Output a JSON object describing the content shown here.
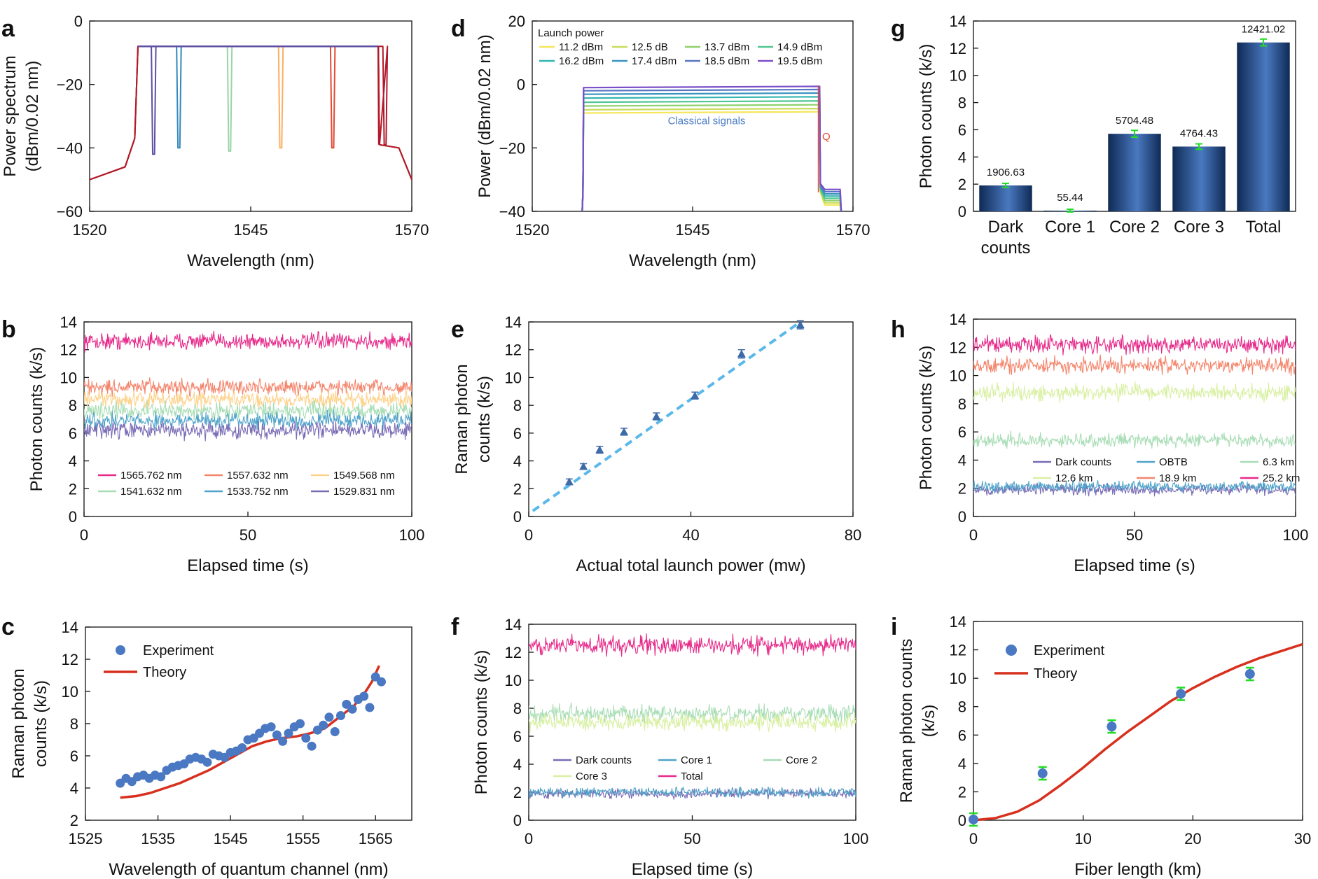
{
  "chart_data": [
    {
      "panel": "a",
      "type": "line",
      "xlabel": "Wavelength (nm)",
      "ylabel": [
        "Power spectrum",
        "(dBm/0.02 nm)"
      ],
      "xlim": [
        1520,
        1570
      ],
      "ylim": [
        -60,
        0
      ],
      "xticks": [
        1520,
        1545,
        1570
      ],
      "yticks": [
        0,
        -20,
        -40,
        -60
      ],
      "ytick_labels": [
        "0",
        "−20",
        "−40",
        "−60"
      ],
      "spectrum": {
        "floor_left": [
          [
            1520,
            -50
          ],
          [
            1525.5,
            -46
          ],
          [
            1527,
            -37
          ],
          [
            1527.5,
            -8
          ]
        ],
        "top": -8,
        "right_edge": 1564.8,
        "floor_right": [
          [
            1565,
            -39
          ],
          [
            1568,
            -40
          ],
          [
            1570,
            -50
          ]
        ]
      },
      "notches": [
        {
          "wavelength": 1529.831,
          "depth": -42,
          "color": "#5e4fa2"
        },
        {
          "wavelength": 1533.752,
          "depth": -40,
          "color": "#3288bd"
        },
        {
          "wavelength": 1541.632,
          "depth": -41,
          "color": "#99d5a4"
        },
        {
          "wavelength": 1549.568,
          "depth": -40,
          "color": "#fdae61"
        },
        {
          "wavelength": 1557.632,
          "depth": -40,
          "color": "#e34a33"
        },
        {
          "wavelength": 1565.762,
          "depth": -39,
          "color": "#b2182b"
        }
      ]
    },
    {
      "panel": "d",
      "type": "line",
      "xlabel": "Wavelength (nm)",
      "ylabel": "Power (dBm/0.02 nm)",
      "xlim": [
        1520,
        1570
      ],
      "ylim": [
        -40,
        20
      ],
      "xticks": [
        1520,
        1545,
        1570
      ],
      "yticks": [
        20,
        0,
        -20,
        -40
      ],
      "ytick_labels": [
        "20",
        "0",
        "−20",
        "−40"
      ],
      "legend_title": "Launch power",
      "annotation": "Classical signals",
      "q_label": "Q",
      "series": [
        {
          "name": "11.2 dBm",
          "color": "#f6e65a",
          "level": -9.0
        },
        {
          "name": "12.5 dB",
          "color": "#c7dd5c",
          "level": -8.0
        },
        {
          "name": "13.7 dBm",
          "color": "#8fd16e",
          "level": -6.8
        },
        {
          "name": "14.9 dBm",
          "color": "#4fc792",
          "level": -5.6
        },
        {
          "name": "16.2 dBm",
          "color": "#32b5b0",
          "level": -4.3
        },
        {
          "name": "17.4 dBm",
          "color": "#3a93c0",
          "level": -3.1
        },
        {
          "name": "18.5 dBm",
          "color": "#5876c2",
          "level": -2.0
        },
        {
          "name": "19.5 dBm",
          "color": "#7b4fc8",
          "level": -1.0
        }
      ],
      "band": [
        1528,
        1564.8
      ]
    },
    {
      "panel": "g",
      "type": "bar",
      "ylabel": "Photon counts (k/s)",
      "ylim": [
        0,
        14
      ],
      "yticks": [
        0,
        2,
        4,
        6,
        8,
        10,
        12,
        14
      ],
      "categories": [
        [
          "Dark",
          "counts"
        ],
        [
          "Core 1"
        ],
        [
          "Core 2"
        ],
        [
          "Core 3"
        ],
        [
          "Total"
        ]
      ],
      "values": [
        1.90663,
        0.05544,
        5.70448,
        4.76443,
        12.42102
      ],
      "labels": [
        "1906.63",
        "55.44",
        "5704.48",
        "4764.43",
        "12421.02"
      ],
      "errors": [
        0.15,
        0.1,
        0.25,
        0.2,
        0.25
      ]
    },
    {
      "panel": "b",
      "type": "line",
      "xlabel": "Elapsed time (s)",
      "ylabel": "Photon counts (k/s)",
      "xlim": [
        0,
        100
      ],
      "ylim": [
        0,
        14
      ],
      "xticks": [
        0,
        50,
        100
      ],
      "yticks": [
        0,
        2,
        4,
        6,
        8,
        10,
        12,
        14
      ],
      "series": [
        {
          "name": "1565.762 nm",
          "mean": 12.6,
          "noise": 0.35,
          "color": "#e7298a"
        },
        {
          "name": "1557.632 nm",
          "mean": 9.3,
          "noise": 0.35,
          "color": "#f4856c"
        },
        {
          "name": "1549.568 nm",
          "mean": 8.4,
          "noise": 0.35,
          "color": "#fdd28a"
        },
        {
          "name": "1541.632 nm",
          "mean": 7.6,
          "noise": 0.35,
          "color": "#a8ddb5"
        },
        {
          "name": "1533.752 nm",
          "mean": 6.9,
          "noise": 0.35,
          "color": "#4ea3c9"
        },
        {
          "name": "1529.831 nm",
          "mean": 6.2,
          "noise": 0.35,
          "color": "#7a6bb5"
        }
      ]
    },
    {
      "panel": "e",
      "type": "scatter",
      "xlabel": "Actual total launch power (mw)",
      "ylabel": [
        "Raman photon",
        "counts (k/s)"
      ],
      "xlim": [
        0,
        80
      ],
      "ylim": [
        0,
        14
      ],
      "xticks": [
        0,
        40,
        80
      ],
      "yticks": [
        0,
        2,
        4,
        6,
        8,
        10,
        12,
        14
      ],
      "points": [
        [
          10,
          2.5
        ],
        [
          13.5,
          3.6
        ],
        [
          17.5,
          4.8
        ],
        [
          23.5,
          6.1
        ],
        [
          31.5,
          7.2
        ],
        [
          41,
          8.7
        ],
        [
          52.5,
          11.7
        ],
        [
          67,
          13.8
        ]
      ],
      "errors": [
        0.2,
        0.2,
        0.25,
        0.25,
        0.25,
        0.25,
        0.3,
        0.3
      ],
      "fit": [
        [
          1,
          0.4
        ],
        [
          67,
          14.0
        ]
      ]
    },
    {
      "panel": "h",
      "type": "line",
      "xlabel": "Elapsed time (s)",
      "ylabel": "Photon counts (k/s)",
      "xlim": [
        0,
        100
      ],
      "ylim": [
        0,
        14
      ],
      "xticks": [
        0,
        50,
        100
      ],
      "yticks": [
        0,
        2,
        4,
        6,
        8,
        10,
        12,
        14
      ],
      "series": [
        {
          "name": "Dark counts",
          "mean": 1.9,
          "noise": 0.22,
          "color": "#7a6bb5"
        },
        {
          "name": "OBTB",
          "mean": 2.1,
          "noise": 0.22,
          "color": "#4ea3c9"
        },
        {
          "name": "6.3 km",
          "mean": 5.4,
          "noise": 0.3,
          "color": "#a8ddb5"
        },
        {
          "name": "12.6 km",
          "mean": 8.8,
          "noise": 0.35,
          "color": "#d9f0a3"
        },
        {
          "name": "18.9 km",
          "mean": 10.7,
          "noise": 0.35,
          "color": "#f4856c"
        },
        {
          "name": "25.2 km",
          "mean": 12.2,
          "noise": 0.35,
          "color": "#e7298a"
        }
      ]
    },
    {
      "panel": "c",
      "type": "scatter",
      "xlabel": "Wavelength of quantum channel (nm)",
      "ylabel": [
        "Raman photon",
        "counts (k/s)"
      ],
      "xlim": [
        1525,
        1570
      ],
      "ylim": [
        2,
        14
      ],
      "xticks": [
        1525,
        1535,
        1545,
        1555,
        1565
      ],
      "yticks": [
        2,
        4,
        6,
        8,
        10,
        12,
        14
      ],
      "legend": [
        "Experiment",
        "Theory"
      ],
      "experiment": [
        [
          1529.8,
          4.3
        ],
        [
          1530.6,
          4.6
        ],
        [
          1531.4,
          4.4
        ],
        [
          1532.2,
          4.7
        ],
        [
          1533.0,
          4.8
        ],
        [
          1533.8,
          4.6
        ],
        [
          1534.6,
          4.8
        ],
        [
          1535.4,
          4.7
        ],
        [
          1536.2,
          5.1
        ],
        [
          1537.0,
          5.3
        ],
        [
          1537.8,
          5.4
        ],
        [
          1538.6,
          5.5
        ],
        [
          1539.4,
          5.8
        ],
        [
          1540.2,
          5.9
        ],
        [
          1541.0,
          5.8
        ],
        [
          1541.8,
          5.6
        ],
        [
          1542.6,
          6.1
        ],
        [
          1543.4,
          6.0
        ],
        [
          1544.2,
          5.9
        ],
        [
          1545.0,
          6.2
        ],
        [
          1545.8,
          6.3
        ],
        [
          1546.6,
          6.5
        ],
        [
          1547.4,
          7.0
        ],
        [
          1548.2,
          7.1
        ],
        [
          1549.0,
          7.4
        ],
        [
          1549.8,
          7.7
        ],
        [
          1550.6,
          7.8
        ],
        [
          1551.4,
          7.3
        ],
        [
          1552.2,
          6.9
        ],
        [
          1553.0,
          7.4
        ],
        [
          1553.8,
          7.8
        ],
        [
          1554.6,
          8.0
        ],
        [
          1555.4,
          7.1
        ],
        [
          1556.2,
          6.6
        ],
        [
          1557.0,
          7.6
        ],
        [
          1557.8,
          7.9
        ],
        [
          1558.6,
          8.4
        ],
        [
          1559.4,
          7.5
        ],
        [
          1560.2,
          8.5
        ],
        [
          1561.0,
          9.2
        ],
        [
          1561.8,
          8.9
        ],
        [
          1562.6,
          9.5
        ],
        [
          1563.4,
          9.7
        ],
        [
          1564.2,
          9.0
        ],
        [
          1565.0,
          10.9
        ],
        [
          1565.8,
          10.6
        ]
      ],
      "theory": [
        [
          1529.8,
          3.4
        ],
        [
          1532,
          3.5
        ],
        [
          1534,
          3.7
        ],
        [
          1536,
          4.0
        ],
        [
          1538,
          4.3
        ],
        [
          1540,
          4.7
        ],
        [
          1542,
          5.1
        ],
        [
          1544,
          5.6
        ],
        [
          1546,
          6.1
        ],
        [
          1548,
          6.6
        ],
        [
          1550,
          6.9
        ],
        [
          1552,
          7.1
        ],
        [
          1554,
          7.2
        ],
        [
          1556,
          7.4
        ],
        [
          1558,
          7.7
        ],
        [
          1560,
          8.4
        ],
        [
          1562,
          9.1
        ],
        [
          1563.5,
          9.9
        ],
        [
          1564.5,
          10.6
        ],
        [
          1565.5,
          11.6
        ]
      ]
    },
    {
      "panel": "f",
      "type": "line",
      "xlabel": "Elapsed time (s)",
      "ylabel": "Photon counts (k/s)",
      "xlim": [
        0,
        100
      ],
      "ylim": [
        0,
        14
      ],
      "xticks": [
        0,
        50,
        100
      ],
      "yticks": [
        0,
        2,
        4,
        6,
        8,
        10,
        12,
        14
      ],
      "series": [
        {
          "name": "Dark counts",
          "mean": 1.9,
          "noise": 0.2,
          "color": "#7a6bb5"
        },
        {
          "name": "Core 1",
          "mean": 2.0,
          "noise": 0.2,
          "color": "#4ea3c9"
        },
        {
          "name": "Core 2",
          "mean": 7.6,
          "noise": 0.35,
          "color": "#a8ddb5"
        },
        {
          "name": "Core 3",
          "mean": 7.0,
          "noise": 0.35,
          "color": "#d9f0a3"
        },
        {
          "name": "Total",
          "mean": 12.5,
          "noise": 0.4,
          "color": "#e7298a"
        }
      ]
    },
    {
      "panel": "i",
      "type": "scatter",
      "xlabel": "Fiber length (km)",
      "ylabel": [
        "Raman photon counts",
        "(k/s)"
      ],
      "xlim": [
        0,
        30
      ],
      "ylim": [
        0,
        14
      ],
      "xticks": [
        0,
        10,
        20,
        30
      ],
      "yticks": [
        0,
        2,
        4,
        6,
        8,
        10,
        12,
        14
      ],
      "legend": [
        "Experiment",
        "Theory"
      ],
      "experiment": [
        [
          0,
          0.05
        ],
        [
          6.3,
          3.3
        ],
        [
          12.6,
          6.6
        ],
        [
          18.9,
          8.9
        ],
        [
          25.2,
          10.3
        ]
      ],
      "theory": [
        [
          0,
          0
        ],
        [
          2,
          0.15
        ],
        [
          4,
          0.6
        ],
        [
          6,
          1.4
        ],
        [
          8,
          2.5
        ],
        [
          10,
          3.7
        ],
        [
          12,
          5.0
        ],
        [
          14,
          6.2
        ],
        [
          16,
          7.3
        ],
        [
          18,
          8.4
        ],
        [
          20,
          9.3
        ],
        [
          22,
          10.1
        ],
        [
          24,
          10.8
        ],
        [
          26,
          11.4
        ],
        [
          28,
          11.9
        ],
        [
          30,
          12.4
        ]
      ]
    }
  ],
  "panel_labels": [
    "a",
    "d",
    "g",
    "b",
    "e",
    "h",
    "c",
    "f",
    "i"
  ]
}
